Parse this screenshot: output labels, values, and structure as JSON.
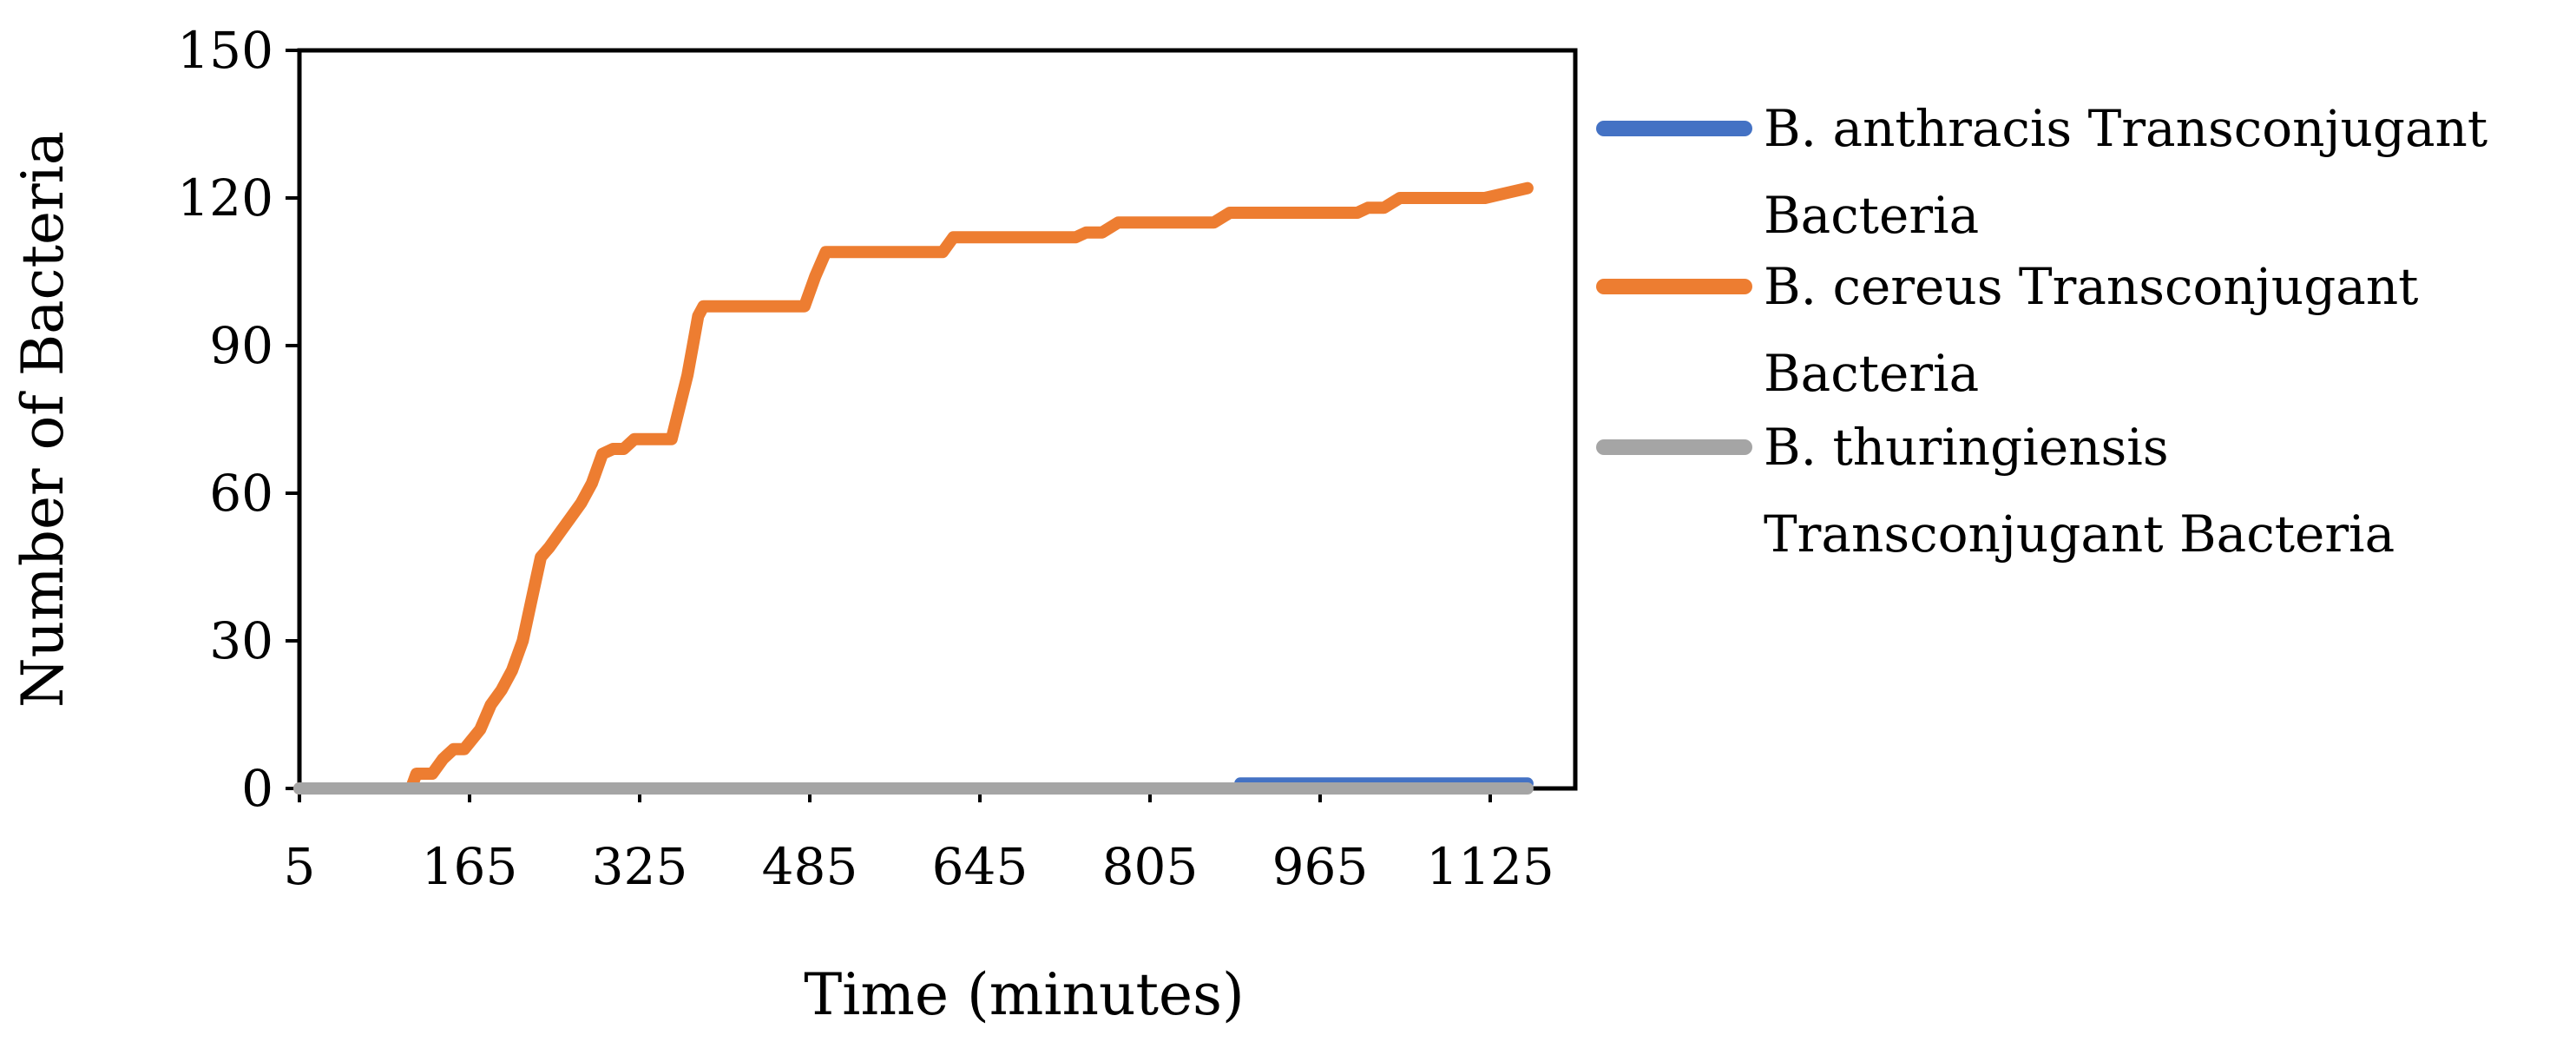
{
  "chart_data": {
    "type": "line",
    "title": "",
    "xlabel": "Time (minutes)",
    "ylabel": "Number of Bacteria",
    "xlim": [
      5,
      1205
    ],
    "ylim": [
      0,
      150
    ],
    "x_ticks": [
      5,
      165,
      325,
      485,
      645,
      805,
      965,
      1125
    ],
    "y_ticks": [
      0,
      30,
      60,
      90,
      120,
      150
    ],
    "grid": false,
    "legend_position": "right",
    "series": [
      {
        "name": "B. anthracis Transconjugant Bacteria",
        "legend_lines": [
          "B. anthracis Transconjugant",
          "Bacteria"
        ],
        "color": "#4472C4",
        "x": [
          5,
          890,
          890,
          1160
        ],
        "y": [
          0,
          0,
          1,
          1
        ]
      },
      {
        "name": "B. cereus Transconjugant Bacteria",
        "legend_lines": [
          "B. cereus Transconjugant",
          "Bacteria"
        ],
        "color": "#ED7D31",
        "x": [
          5,
          110,
          115,
          130,
          140,
          150,
          160,
          175,
          185,
          195,
          205,
          215,
          225,
          232,
          240,
          250,
          260,
          270,
          280,
          290,
          300,
          310,
          320,
          330,
          340,
          355,
          370,
          375,
          380,
          385,
          392,
          400,
          480,
          490,
          500,
          510,
          600,
          610,
          620,
          735,
          745,
          760,
          775,
          790,
          865,
          880,
          1000,
          1010,
          1025,
          1040,
          1100,
          1120,
          1140,
          1160
        ],
        "y": [
          0,
          0,
          3,
          3,
          6,
          8,
          8,
          12,
          17,
          20,
          24,
          30,
          40,
          47,
          49,
          52,
          55,
          58,
          62,
          68,
          69,
          69,
          71,
          71,
          71,
          71,
          84,
          90,
          96,
          98,
          98,
          98,
          98,
          104,
          109,
          109,
          109,
          109,
          112,
          112,
          113,
          113,
          115,
          115,
          115,
          117,
          117,
          118,
          118,
          120,
          120,
          120,
          121,
          122
        ]
      },
      {
        "name": "B. thuringiensis Transconjugant Bacteria",
        "legend_lines": [
          "B. thuringiensis",
          "Transconjugant Bacteria"
        ],
        "color": "#A5A5A5",
        "x": [
          5,
          1160
        ],
        "y": [
          0,
          0
        ]
      }
    ]
  }
}
